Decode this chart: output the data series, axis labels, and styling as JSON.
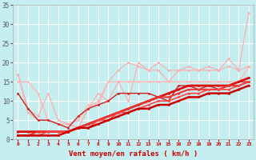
{
  "xlabel": "Vent moyen/en rafales ( km/h )",
  "xlim": [
    -0.5,
    23.5
  ],
  "ylim": [
    0,
    35
  ],
  "yticks": [
    0,
    5,
    10,
    15,
    20,
    25,
    30,
    35
  ],
  "xticks": [
    0,
    1,
    2,
    3,
    4,
    5,
    6,
    7,
    8,
    9,
    10,
    11,
    12,
    13,
    14,
    15,
    16,
    17,
    18,
    19,
    20,
    21,
    22,
    23
  ],
  "bg_color": "#c5eef0",
  "grid_color": "#aadddd",
  "lines": [
    {
      "x": [
        0,
        1,
        2,
        3,
        4,
        5,
        6,
        7,
        8,
        9,
        10,
        11,
        12,
        13,
        14,
        15,
        16,
        17,
        18,
        19,
        20,
        21,
        22,
        23
      ],
      "y": [
        17,
        7,
        5,
        5,
        4,
        4,
        3,
        8,
        10,
        15,
        18,
        20,
        19,
        18,
        18,
        15,
        18,
        18,
        18,
        18,
        18,
        21,
        18,
        33
      ],
      "color": "#ffaaaa",
      "lw": 0.8,
      "marker": "o",
      "ms": 2.0
    },
    {
      "x": [
        0,
        1,
        2,
        3,
        4,
        5,
        6,
        7,
        8,
        9,
        10,
        11,
        12,
        13,
        14,
        15,
        16,
        17,
        18,
        19,
        20,
        21,
        22,
        23
      ],
      "y": [
        15,
        15,
        12,
        5,
        4,
        4,
        5,
        9,
        9,
        15,
        15,
        15,
        15,
        15,
        15,
        15,
        15,
        15,
        15,
        15,
        15,
        15,
        15,
        19
      ],
      "color": "#ffbbbb",
      "lw": 1.2,
      "marker": "o",
      "ms": 2.0
    },
    {
      "x": [
        0,
        1,
        2,
        3,
        4,
        5,
        6,
        7,
        8,
        9,
        10,
        11,
        12,
        13,
        14,
        15,
        16,
        17,
        18,
        19,
        20,
        21,
        22,
        23
      ],
      "y": [
        17,
        8,
        6,
        12,
        5,
        4,
        3,
        8,
        12,
        10,
        15,
        10,
        20,
        18,
        20,
        18,
        18,
        19,
        18,
        19,
        18,
        19,
        18,
        19
      ],
      "color": "#ffaaaa",
      "lw": 0.8,
      "marker": "o",
      "ms": 2.0
    },
    {
      "x": [
        0,
        1,
        2,
        3,
        4,
        5,
        6,
        7,
        8,
        9,
        10,
        11,
        12,
        13,
        14,
        15,
        16,
        17,
        18,
        19,
        20,
        21,
        22,
        23
      ],
      "y": [
        12,
        8,
        5,
        5,
        4,
        3,
        6,
        8,
        9,
        10,
        12,
        12,
        12,
        12,
        11,
        10,
        14,
        14,
        13,
        14,
        13,
        14,
        15,
        15
      ],
      "color": "#cc2222",
      "lw": 1.0,
      "marker": "o",
      "ms": 2.0
    },
    {
      "x": [
        0,
        1,
        2,
        3,
        4,
        5,
        6,
        7,
        8,
        9,
        10,
        11,
        12,
        13,
        14,
        15,
        16,
        17,
        18,
        19,
        20,
        21,
        22,
        23
      ],
      "y": [
        2,
        2,
        2,
        2,
        2,
        2,
        3,
        4,
        5,
        6,
        7,
        8,
        9,
        10,
        11,
        12,
        13,
        14,
        14,
        14,
        14,
        14,
        15,
        16
      ],
      "color": "#dd1111",
      "lw": 2.0,
      "marker": "o",
      "ms": 2.0
    },
    {
      "x": [
        0,
        1,
        2,
        3,
        4,
        5,
        6,
        7,
        8,
        9,
        10,
        11,
        12,
        13,
        14,
        15,
        16,
        17,
        18,
        19,
        20,
        21,
        22,
        23
      ],
      "y": [
        1,
        1,
        2,
        2,
        2,
        2,
        3,
        4,
        5,
        6,
        7,
        8,
        9,
        10,
        11,
        11,
        12,
        13,
        13,
        13,
        13,
        14,
        14,
        15
      ],
      "color": "#ee3333",
      "lw": 1.5,
      "marker": "o",
      "ms": 2.0
    },
    {
      "x": [
        0,
        1,
        2,
        3,
        4,
        5,
        6,
        7,
        8,
        9,
        10,
        11,
        12,
        13,
        14,
        15,
        16,
        17,
        18,
        19,
        20,
        21,
        22,
        23
      ],
      "y": [
        1,
        1,
        1,
        2,
        2,
        2,
        3,
        3,
        5,
        5,
        7,
        7,
        8,
        9,
        10,
        10,
        11,
        12,
        12,
        13,
        13,
        13,
        14,
        15
      ],
      "color": "#ff4444",
      "lw": 1.2,
      "marker": "o",
      "ms": 2.0
    },
    {
      "x": [
        0,
        1,
        2,
        3,
        4,
        5,
        6,
        7,
        8,
        9,
        10,
        11,
        12,
        13,
        14,
        15,
        16,
        17,
        18,
        19,
        20,
        21,
        22,
        23
      ],
      "y": [
        1,
        1,
        1,
        1,
        1,
        2,
        3,
        3,
        4,
        5,
        6,
        7,
        8,
        8,
        9,
        9,
        10,
        11,
        11,
        12,
        12,
        12,
        13,
        14
      ],
      "color": "#cc0000",
      "lw": 1.8,
      "marker": "o",
      "ms": 2.0
    }
  ]
}
